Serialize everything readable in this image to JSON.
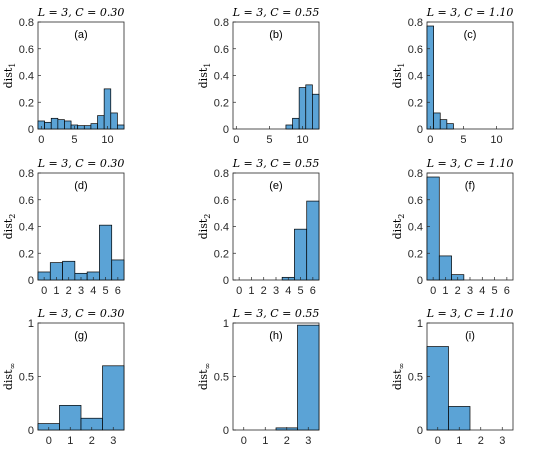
{
  "colors": {
    "bar": "#5ba3d6",
    "bar_edge": "#000000",
    "axis": "#262626"
  },
  "chart_data": [
    {
      "type": "bar",
      "tag": "(a)",
      "title": "L = 3, C = 0.30",
      "ylabel": "dist",
      "ylabel_sub": "1",
      "xlim": [
        -0.5,
        12.5
      ],
      "ylim": [
        0,
        0.8
      ],
      "xticks": [
        0,
        5,
        10
      ],
      "yticks": [
        0,
        0.2,
        0.4,
        0.6,
        0.8
      ],
      "x": [
        0,
        1,
        2,
        3,
        4,
        5,
        6,
        7,
        8,
        9,
        10,
        11,
        12
      ],
      "values": [
        0.06,
        0.05,
        0.08,
        0.07,
        0.06,
        0.03,
        0.025,
        0.025,
        0.04,
        0.1,
        0.3,
        0.12,
        0.03
      ]
    },
    {
      "type": "bar",
      "tag": "(b)",
      "title": "L = 3, C = 0.55",
      "ylabel": "dist",
      "ylabel_sub": "1",
      "xlim": [
        -0.5,
        12.5
      ],
      "ylim": [
        0,
        0.8
      ],
      "xticks": [
        0,
        5,
        10
      ],
      "yticks": [
        0,
        0.2,
        0.4,
        0.6,
        0.8
      ],
      "x": [
        0,
        1,
        2,
        3,
        4,
        5,
        6,
        7,
        8,
        9,
        10,
        11,
        12
      ],
      "values": [
        0,
        0,
        0,
        0,
        0,
        0,
        0,
        0,
        0.03,
        0.08,
        0.31,
        0.33,
        0.26
      ]
    },
    {
      "type": "bar",
      "tag": "(c)",
      "title": "L = 3, C = 1.10",
      "ylabel": "dist",
      "ylabel_sub": "1",
      "xlim": [
        -0.5,
        12.5
      ],
      "ylim": [
        0,
        0.8
      ],
      "xticks": [
        0,
        5,
        10
      ],
      "yticks": [
        0,
        0.2,
        0.4,
        0.6,
        0.8
      ],
      "x": [
        0,
        1,
        2,
        3,
        4,
        5,
        6,
        7,
        8,
        9,
        10,
        11,
        12
      ],
      "values": [
        0.77,
        0.12,
        0.07,
        0.04,
        0,
        0,
        0,
        0,
        0,
        0,
        0,
        0,
        0
      ]
    },
    {
      "type": "bar",
      "tag": "(d)",
      "title": "L = 3, C = 0.30",
      "ylabel": "dist",
      "ylabel_sub": "2",
      "xlim": [
        -0.5,
        6.5
      ],
      "ylim": [
        0,
        0.8
      ],
      "xticks": [
        0,
        1,
        2,
        3,
        4,
        5,
        6
      ],
      "yticks": [
        0,
        0.2,
        0.4,
        0.6,
        0.8
      ],
      "x": [
        0,
        1,
        2,
        3,
        4,
        5,
        6
      ],
      "values": [
        0.06,
        0.13,
        0.14,
        0.05,
        0.06,
        0.41,
        0.15
      ]
    },
    {
      "type": "bar",
      "tag": "(e)",
      "title": "L = 3, C = 0.55",
      "ylabel": "dist",
      "ylabel_sub": "2",
      "xlim": [
        -0.5,
        6.5
      ],
      "ylim": [
        0,
        0.8
      ],
      "xticks": [
        0,
        1,
        2,
        3,
        4,
        5,
        6
      ],
      "yticks": [
        0,
        0.2,
        0.4,
        0.6,
        0.8
      ],
      "x": [
        0,
        1,
        2,
        3,
        4,
        5,
        6
      ],
      "values": [
        0,
        0,
        0,
        0,
        0.02,
        0.38,
        0.59
      ]
    },
    {
      "type": "bar",
      "tag": "(f)",
      "title": "L = 3, C = 1.10",
      "ylabel": "dist",
      "ylabel_sub": "2",
      "xlim": [
        -0.5,
        6.5
      ],
      "ylim": [
        0,
        0.8
      ],
      "xticks": [
        0,
        1,
        2,
        3,
        4,
        5,
        6
      ],
      "yticks": [
        0,
        0.2,
        0.4,
        0.6,
        0.8
      ],
      "x": [
        0,
        1,
        2,
        3,
        4,
        5,
        6
      ],
      "values": [
        0.77,
        0.18,
        0.04,
        0,
        0,
        0,
        0
      ]
    },
    {
      "type": "bar",
      "tag": "(g)",
      "title": "L = 3, C = 0.30",
      "ylabel": "dist",
      "ylabel_sub": "∞",
      "xlim": [
        -0.5,
        3.5
      ],
      "ylim": [
        0,
        1
      ],
      "xticks": [
        0,
        1,
        2,
        3
      ],
      "yticks": [
        0,
        0.5,
        1
      ],
      "x": [
        0,
        1,
        2,
        3
      ],
      "values": [
        0.06,
        0.23,
        0.11,
        0.6
      ]
    },
    {
      "type": "bar",
      "tag": "(h)",
      "title": "L = 3, C = 0.55",
      "ylabel": "dist",
      "ylabel_sub": "∞",
      "xlim": [
        -0.5,
        3.5
      ],
      "ylim": [
        0,
        1
      ],
      "xticks": [
        0,
        1,
        2,
        3
      ],
      "yticks": [
        0,
        0.5,
        1
      ],
      "x": [
        0,
        1,
        2,
        3
      ],
      "values": [
        0,
        0,
        0.02,
        0.98
      ]
    },
    {
      "type": "bar",
      "tag": "(i)",
      "title": "L = 3, C = 1.10",
      "ylabel": "dist",
      "ylabel_sub": "∞",
      "xlim": [
        -0.5,
        3.5
      ],
      "ylim": [
        0,
        1
      ],
      "xticks": [
        0,
        1,
        2,
        3
      ],
      "yticks": [
        0,
        0.5,
        1
      ],
      "x": [
        0,
        1,
        2,
        3
      ],
      "values": [
        0.78,
        0.22,
        0,
        0
      ]
    }
  ]
}
